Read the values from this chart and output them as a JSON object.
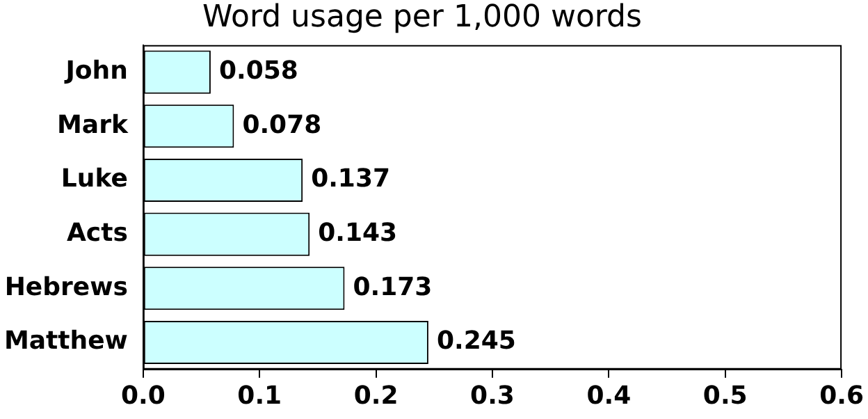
{
  "chart_data": {
    "type": "bar",
    "orientation": "horizontal",
    "title": "Word usage per 1,000 words",
    "categories": [
      "John",
      "Mark",
      "Luke",
      "Acts",
      "Hebrews",
      "Matthew"
    ],
    "values": [
      0.058,
      0.078,
      0.137,
      0.143,
      0.173,
      0.245
    ],
    "color": "#ccffff",
    "xlim": [
      0,
      0.6
    ],
    "xticks": [
      {
        "value": 0,
        "label": "0.0"
      },
      {
        "value": 0.1,
        "label": "0.1"
      },
      {
        "value": 0.2,
        "label": "0.2"
      },
      {
        "value": 0.3,
        "label": "0.3"
      },
      {
        "value": 0.4,
        "label": "0.4"
      },
      {
        "value": 0.5,
        "label": "0.5"
      },
      {
        "value": 0.6,
        "label": "0.6"
      }
    ],
    "data_labels": true,
    "grid": false,
    "legend": false
  }
}
